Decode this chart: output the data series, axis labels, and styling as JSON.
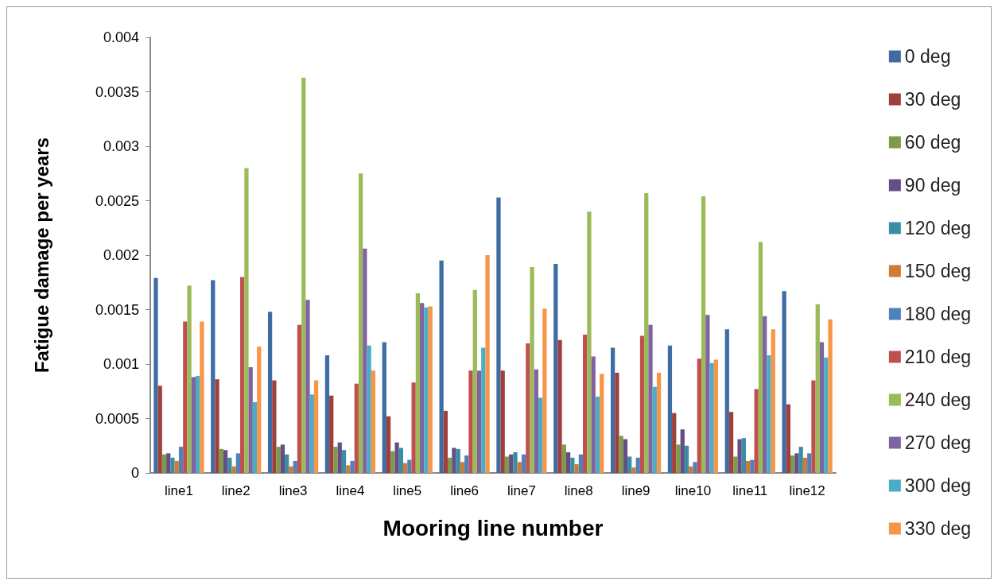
{
  "chart_data": {
    "type": "bar",
    "xlabel": "Mooring line number",
    "ylabel": "Fatigue damage per years",
    "categories": [
      "line1",
      "line2",
      "line3",
      "line4",
      "line5",
      "line6",
      "line7",
      "line8",
      "line9",
      "line10",
      "line11",
      "line12"
    ],
    "ylim": [
      0,
      0.004
    ],
    "yticks": [
      0,
      0.0005,
      0.001,
      0.0015,
      0.002,
      0.0025,
      0.003,
      0.0035,
      0.004
    ],
    "grid": false,
    "legend": "right",
    "series": [
      {
        "name": "0 deg",
        "color": "#3e6ca3",
        "values": [
          0.00179,
          0.00177,
          0.00148,
          0.00108,
          0.0012,
          0.00195,
          0.00253,
          0.00192,
          0.00115,
          0.00117,
          0.00132,
          0.00167
        ]
      },
      {
        "name": "30 deg",
        "color": "#a0403d",
        "values": [
          0.0008,
          0.00086,
          0.00085,
          0.00071,
          0.00052,
          0.00057,
          0.00094,
          0.00122,
          0.00092,
          0.00055,
          0.00056,
          0.00063
        ]
      },
      {
        "name": "60 deg",
        "color": "#7f9a48",
        "values": [
          0.00017,
          0.00022,
          0.00024,
          0.00024,
          0.0002,
          0.00014,
          0.00015,
          0.00026,
          0.00034,
          0.00026,
          0.00015,
          0.00016
        ]
      },
      {
        "name": "90 deg",
        "color": "#664d88",
        "values": [
          0.00018,
          0.00021,
          0.00026,
          0.00028,
          0.00028,
          0.00023,
          0.00017,
          0.00019,
          0.00031,
          0.0004,
          0.00031,
          0.00018
        ]
      },
      {
        "name": "120 deg",
        "color": "#3a8ea4",
        "values": [
          0.00014,
          0.00014,
          0.00017,
          0.00021,
          0.00023,
          0.00022,
          0.00019,
          0.00014,
          0.00015,
          0.00025,
          0.00032,
          0.00024
        ]
      },
      {
        "name": "150 deg",
        "color": "#d07a34",
        "values": [
          0.00011,
          6e-05,
          6e-05,
          7e-05,
          9e-05,
          0.0001,
          0.0001,
          8e-05,
          5e-05,
          6e-05,
          0.00011,
          0.00014
        ]
      },
      {
        "name": "180 deg",
        "color": "#4f81bd",
        "values": [
          0.00024,
          0.00018,
          0.00011,
          0.00011,
          0.00012,
          0.00016,
          0.00017,
          0.00017,
          0.00014,
          0.0001,
          0.00012,
          0.00018
        ]
      },
      {
        "name": "210 deg",
        "color": "#c0504d",
        "values": [
          0.00139,
          0.0018,
          0.00136,
          0.00082,
          0.00083,
          0.00094,
          0.00119,
          0.00127,
          0.00126,
          0.00105,
          0.00077,
          0.00085
        ]
      },
      {
        "name": "240 deg",
        "color": "#9bbb59",
        "values": [
          0.00172,
          0.0028,
          0.00363,
          0.00275,
          0.00165,
          0.00168,
          0.00189,
          0.0024,
          0.00257,
          0.00254,
          0.00212,
          0.00155
        ]
      },
      {
        "name": "270 deg",
        "color": "#8064a2",
        "values": [
          0.00088,
          0.00097,
          0.00159,
          0.00206,
          0.00156,
          0.00094,
          0.00095,
          0.00107,
          0.00136,
          0.00145,
          0.00144,
          0.0012
        ]
      },
      {
        "name": "300 deg",
        "color": "#4bacc6",
        "values": [
          0.00089,
          0.00065,
          0.00072,
          0.00117,
          0.00152,
          0.00115,
          0.00069,
          0.0007,
          0.00079,
          0.00101,
          0.00108,
          0.00106
        ]
      },
      {
        "name": "330 deg",
        "color": "#f79646",
        "values": [
          0.00139,
          0.00116,
          0.00085,
          0.00094,
          0.00153,
          0.002,
          0.00151,
          0.00091,
          0.00092,
          0.00104,
          0.00132,
          0.00141
        ]
      }
    ]
  }
}
